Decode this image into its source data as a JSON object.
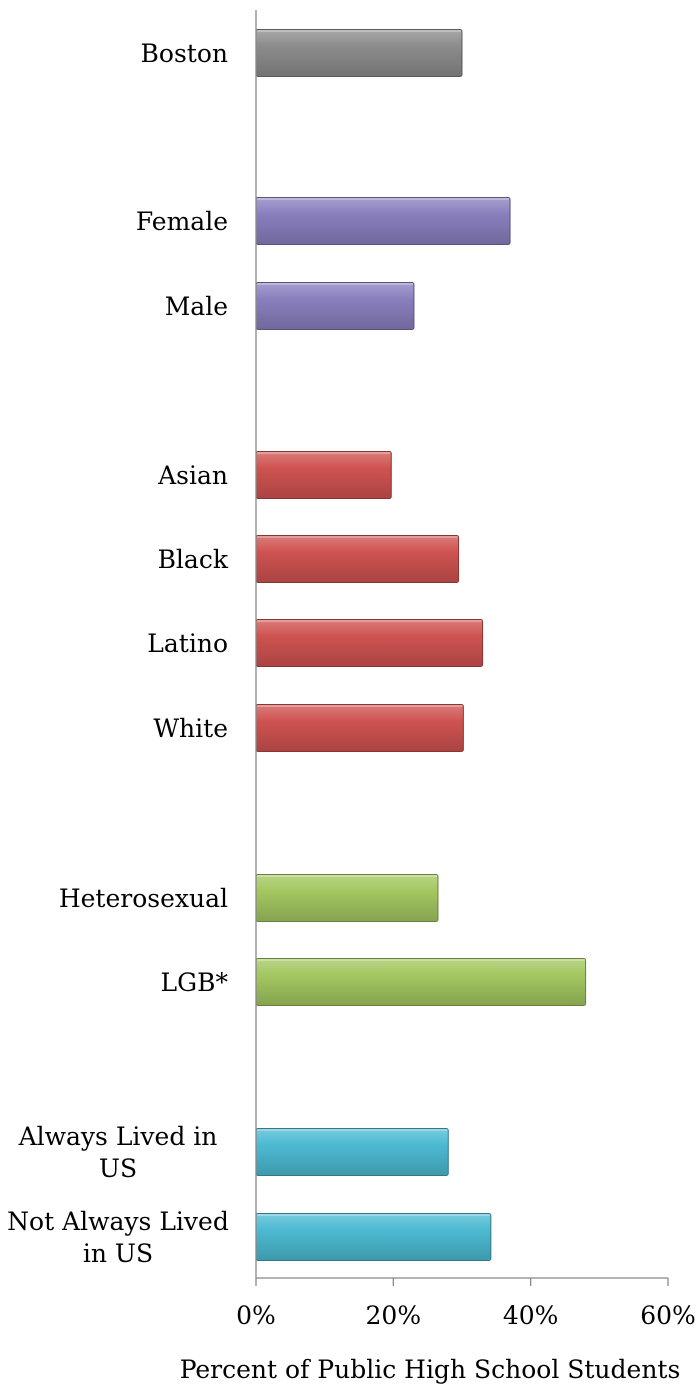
{
  "chart_data": {
    "type": "bar",
    "orientation": "horizontal",
    "xlabel": "Percent of Public High School Students",
    "ylabel": "",
    "xlim": [
      0,
      60
    ],
    "xticks": [
      "0%",
      "20%",
      "40%",
      "60%"
    ],
    "grid": false,
    "legend": "none",
    "categories": [
      {
        "label": [
          "Boston"
        ],
        "value": 30,
        "group": "overall"
      },
      {
        "label": [
          "Female"
        ],
        "value": 37,
        "group": "gender"
      },
      {
        "label": [
          "Male"
        ],
        "value": 23,
        "group": "gender"
      },
      {
        "label": [
          "Asian"
        ],
        "value": 19.7,
        "group": "race"
      },
      {
        "label": [
          "Black"
        ],
        "value": 29.5,
        "group": "race"
      },
      {
        "label": [
          "Latino"
        ],
        "value": 33,
        "group": "race"
      },
      {
        "label": [
          "White"
        ],
        "value": 30.2,
        "group": "race"
      },
      {
        "label": [
          "Heterosexual"
        ],
        "value": 26.5,
        "group": "orientation"
      },
      {
        "label": [
          "LGB*"
        ],
        "value": 48,
        "group": "orientation"
      },
      {
        "label": [
          "Always Lived in",
          "US"
        ],
        "value": 28,
        "group": "residency"
      },
      {
        "label": [
          "Not Always Lived",
          "in US"
        ],
        "value": 34.2,
        "group": "residency"
      }
    ],
    "group_colors": {
      "overall": "#8c8c8c",
      "gender": "#8a7fbe",
      "race": "#cf5350",
      "orientation": "#a3c760",
      "residency": "#4cbad2"
    }
  }
}
